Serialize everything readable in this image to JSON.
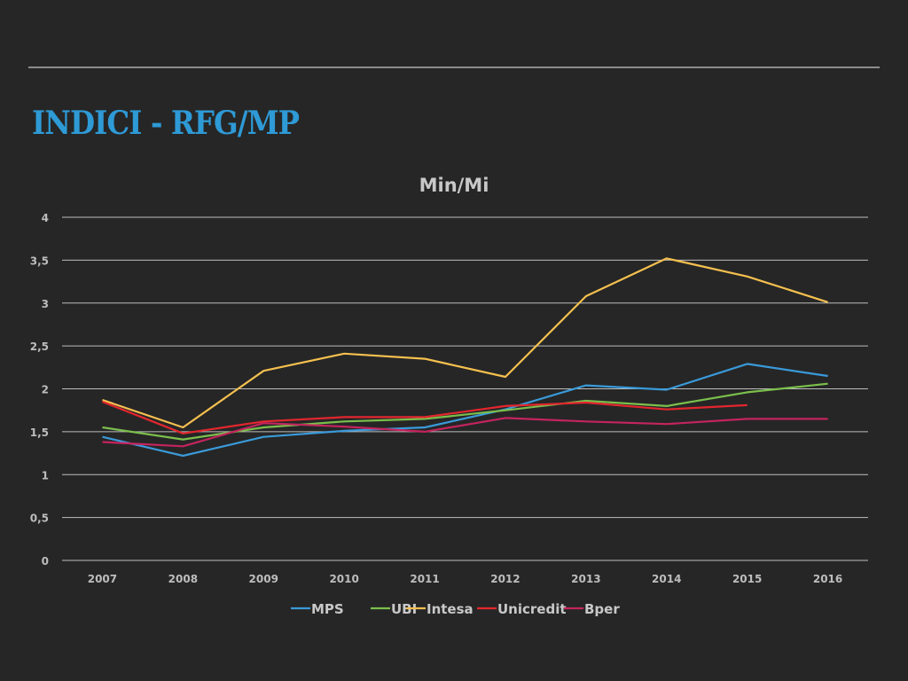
{
  "slide": {
    "title": "INDICI - RFG/MP"
  },
  "chart_data": {
    "type": "line",
    "title": "Min/Mi",
    "categories": [
      "2007",
      "2008",
      "2009",
      "2010",
      "2011",
      "2012",
      "2013",
      "2014",
      "2015",
      "2016"
    ],
    "ylim": [
      0,
      4
    ],
    "yticks": [
      0,
      0.5,
      1,
      1.5,
      2,
      2.5,
      3,
      3.5,
      4
    ],
    "ytick_labels": [
      "0",
      "0,5",
      "1",
      "1,5",
      "2",
      "2,5",
      "3",
      "3,5",
      "4"
    ],
    "grid": true,
    "legend_position": "bottom",
    "series": [
      {
        "name": "MPS",
        "color": "#3a9ad9",
        "values": [
          1.44,
          1.22,
          1.44,
          1.51,
          1.55,
          1.76,
          2.04,
          1.99,
          2.29,
          2.15
        ]
      },
      {
        "name": "UBI",
        "color": "#7bbf4c",
        "values": [
          1.55,
          1.41,
          1.55,
          1.62,
          1.65,
          1.75,
          1.86,
          1.8,
          1.96,
          2.06
        ]
      },
      {
        "name": "Intesa",
        "color": "#f5c04f",
        "values": [
          1.87,
          1.55,
          2.21,
          2.41,
          2.35,
          2.14,
          3.08,
          3.52,
          3.31,
          3.01
        ]
      },
      {
        "name": "Unicredit",
        "color": "#e3262e",
        "values": [
          1.85,
          1.48,
          1.62,
          1.67,
          1.67,
          1.8,
          1.84,
          1.76,
          1.81,
          null
        ]
      },
      {
        "name": "Bper",
        "color": "#c4245e",
        "values": [
          1.38,
          1.33,
          1.6,
          1.56,
          1.5,
          1.66,
          1.62,
          1.59,
          1.65,
          1.65
        ]
      }
    ]
  }
}
